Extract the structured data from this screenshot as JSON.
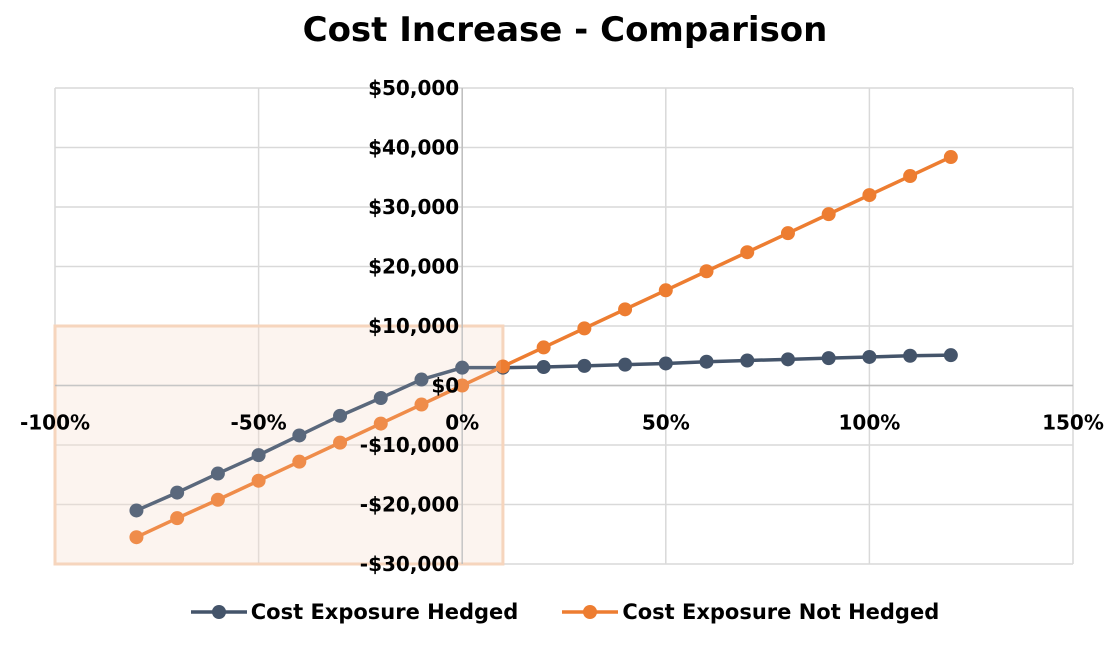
{
  "chart_data": {
    "type": "line",
    "title": "Cost Increase - Comparison",
    "xlabel": "",
    "ylabel": "",
    "xlim": [
      -1.0,
      1.5
    ],
    "ylim": [
      -30000,
      50000
    ],
    "x_ticks": [
      -1.0,
      -0.5,
      0,
      0.5,
      1.0,
      1.5
    ],
    "x_tick_labels": [
      "-100%",
      "-50%",
      "0%",
      "50%",
      "100%",
      "150%"
    ],
    "y_ticks": [
      50000,
      40000,
      30000,
      20000,
      10000,
      0,
      -10000,
      -20000,
      -30000
    ],
    "y_tick_labels": [
      "$50,000",
      "$40,000",
      "$30,000",
      "$20,000",
      "$10,000",
      "$0",
      "-$10,000",
      "-$20,000",
      "-$30,000"
    ],
    "grid": true,
    "legend_position": "bottom",
    "highlight_region": {
      "x_range": [
        -1.0,
        0.1
      ],
      "y_range": [
        -30000,
        10000
      ],
      "color": "#f6d5bd"
    },
    "x": [
      -0.8,
      -0.7,
      -0.6,
      -0.5,
      -0.4,
      -0.3,
      -0.2,
      -0.1,
      0.0,
      0.1,
      0.2,
      0.3,
      0.4,
      0.5,
      0.6,
      0.7,
      0.8,
      0.9,
      1.0,
      1.1,
      1.2
    ],
    "series": [
      {
        "name": "Cost Exposure Hedged",
        "color": "#44546a",
        "values": [
          -21000,
          -18000,
          -14800,
          -11700,
          -8400,
          -5100,
          -2100,
          1000,
          3000,
          3000,
          3100,
          3300,
          3500,
          3700,
          4000,
          4200,
          4400,
          4600,
          4800,
          5000,
          5100
        ]
      },
      {
        "name": "Cost Exposure Not Hedged",
        "color": "#ed7d31",
        "values": [
          -25500,
          -22300,
          -19200,
          -16000,
          -12800,
          -9600,
          -6400,
          -3200,
          0,
          3200,
          6400,
          9600,
          12800,
          16000,
          19200,
          22400,
          25600,
          28800,
          32000,
          35200,
          38400
        ]
      }
    ]
  },
  "legend": {
    "items": [
      {
        "label": "Cost Exposure Hedged",
        "color": "#44546a"
      },
      {
        "label": "Cost Exposure Not Hedged",
        "color": "#ed7d31"
      }
    ]
  }
}
